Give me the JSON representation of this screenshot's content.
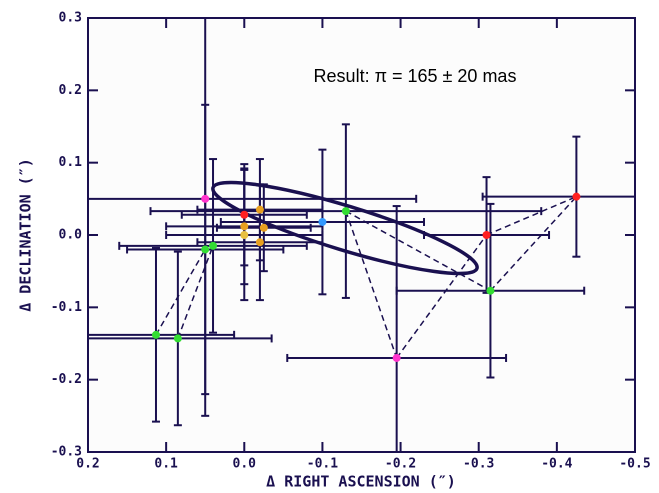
{
  "chart_data": {
    "type": "scatter",
    "annotation": "Result:  π = 165 ± 20 mas",
    "x_label": "Δ RIGHT ASCENSION (″)",
    "y_label": "Δ DECLINATION (″)",
    "xlim": [
      0.2,
      -0.5
    ],
    "ylim": [
      -0.3,
      0.3
    ],
    "xticks": [
      0.2,
      0.1,
      {
        "value": 0,
        "label": "0.0"
      },
      -0.1,
      -0.2,
      -0.3,
      -0.4,
      -0.5
    ],
    "yticks": [
      -0.3,
      -0.2,
      -0.1,
      {
        "value": 0,
        "label": "0.0"
      },
      0.1,
      0.2,
      0.3
    ],
    "x": [
      0.05,
      0.0,
      -0.02,
      0.0,
      0.0,
      -0.025,
      -0.02,
      -0.1,
      -0.13,
      0.05,
      0.04,
      0.113,
      0.085,
      -0.195,
      -0.31,
      -0.315,
      -0.425
    ],
    "y": [
      0.05,
      0.028,
      0.035,
      0.012,
      0.0,
      0.01,
      -0.01,
      0.018,
      0.033,
      -0.02,
      -0.015,
      -0.138,
      -0.143,
      -0.17,
      0.0,
      -0.077,
      0.053
    ],
    "xerr": [
      0.27,
      0.08,
      0.08,
      0.1,
      0.1,
      0.06,
      0.08,
      0.13,
      0.25,
      0.1,
      0.12,
      0.1,
      0.12,
      0.14,
      0.08,
      0.12,
      0.12
    ],
    "yerr": [
      0.3,
      0.07,
      0.07,
      0.08,
      0.09,
      0.06,
      0.08,
      0.1,
      0.12,
      0.2,
      0.12,
      0.12,
      0.12,
      0.21,
      0.08,
      0.12,
      0.083
    ],
    "colors": [
      "#ff33cc",
      "#ff2020",
      "#e8a020",
      "#e8a020",
      "#e8c040",
      "#e8a020",
      "#e8a020",
      "#3399ff",
      "#33dd33",
      "#33dd33",
      "#33dd33",
      "#33dd33",
      "#33dd33",
      "#ff33cc",
      "#ff2020",
      "#33dd33",
      "#ff2020"
    ]
  }
}
